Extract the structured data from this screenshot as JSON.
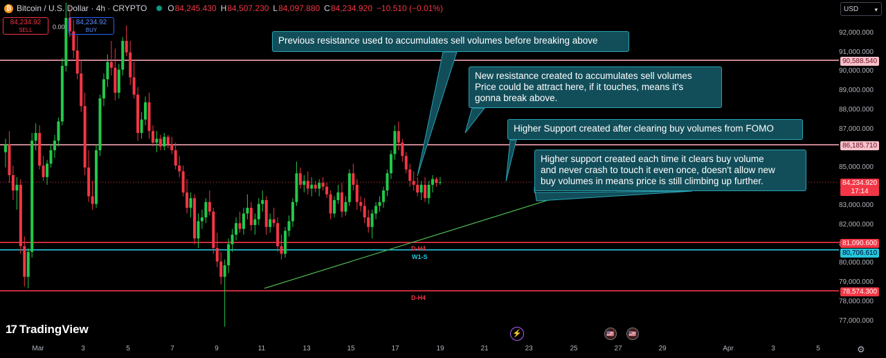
{
  "header": {
    "coin_icon": "bitcoin-icon",
    "symbol": "Bitcoin / U.S. Dollar · 4h · CRYPTO",
    "o_label": "O",
    "o": "84,245.430",
    "h_label": "H",
    "h": "84,507.230",
    "l_label": "L",
    "l": "84,097.880",
    "c_label": "C",
    "c": "84,234.920",
    "change": "−10.510 (−0.01%)"
  },
  "trade": {
    "sell_price": "84,234.92",
    "sell_label": "SELL",
    "spread": "0.00",
    "buy_price": "84,234.92",
    "buy_label": "BUY"
  },
  "currency": "USD",
  "price_labels": {
    "line_90588": "90,588.540",
    "line_86185": "86,185.710",
    "current": "84,234.920",
    "countdown": "17:14",
    "line_81090": "81,090.600",
    "line_80706": "80,706.610",
    "line_78574": "78,574.300"
  },
  "level_tags": {
    "dh4_upper": "D-H4",
    "w1s": "W1-S",
    "dh4_lower": "D-H4"
  },
  "annotations": {
    "note1": "Previous resistance used to accumulates sell volumes before breaking above",
    "note2_l1": "New resistance created to accumulates sell volumes",
    "note2_l2": "Price could be attract here, if it touches, means it's",
    "note2_l3": "gonna break above.",
    "note3": "Higher Support created after clearing buy volumes from FOMO",
    "note4_l1": "Higher support created each time it clears buy volume",
    "note4_l2": "and never crash to touch it even once, doesn't allow new",
    "note4_l3": "buy volumes in means price is still climbing up further."
  },
  "branding": "TradingView",
  "colors": {
    "up": "#22c94a",
    "down": "#f23645",
    "background": "#000000",
    "resistance": "#f5a3b3",
    "support_red": "#f23645",
    "support_cyan": "#26c6da",
    "trendline": "#4caf50"
  },
  "chart_data": {
    "type": "candlestick",
    "title": "Bitcoin / U.S. Dollar · 4h · CRYPTO",
    "y_ticks": [
      92000,
      91000,
      90000,
      89000,
      88000,
      87000,
      85000,
      83000,
      82000,
      81000,
      80000,
      79000,
      78000,
      77000
    ],
    "y_tick_labels": [
      "92,000.000",
      "91,000.000",
      "90,000.000",
      "89,000.000",
      "88,000.000",
      "87,000.000",
      "85,000.000",
      "83,000.000",
      "82,000.000",
      "81,000.000",
      "80,000.000",
      "79,000.000",
      "78,000.000",
      "77,000.000"
    ],
    "x_ticks": [
      "Mar",
      "3",
      "5",
      "7",
      "9",
      "11",
      "13",
      "15",
      "17",
      "19",
      "21",
      "23",
      "25",
      "27",
      "29",
      "Apr",
      "3",
      "5"
    ],
    "ylim": [
      76400,
      93700
    ],
    "horizontal_levels": [
      90588.54,
      86185.71,
      84234.92,
      81090.6,
      80706.61,
      78574.3
    ],
    "trendline": [
      {
        "x": "2025-03-11",
        "y": 78700
      },
      {
        "x": "2025-03-24",
        "y": 83550
      }
    ],
    "candles": [
      [
        85800,
        86500,
        85000,
        86200
      ],
      [
        86200,
        86900,
        84200,
        84600
      ],
      [
        84600,
        85100,
        83300,
        83800
      ],
      [
        83800,
        84500,
        82800,
        84100
      ],
      [
        84100,
        84400,
        80500,
        80900
      ],
      [
        80900,
        81400,
        78800,
        79300
      ],
      [
        79300,
        80800,
        78700,
        80600
      ],
      [
        80600,
        86800,
        80300,
        86400
      ],
      [
        86400,
        87300,
        85900,
        86800
      ],
      [
        86800,
        87200,
        84900,
        85100
      ],
      [
        85100,
        85600,
        84300,
        84500
      ],
      [
        84500,
        85400,
        84100,
        85200
      ],
      [
        85200,
        86200,
        85000,
        85900
      ],
      [
        85900,
        86700,
        85500,
        86400
      ],
      [
        86400,
        87600,
        86100,
        87400
      ],
      [
        87400,
        90700,
        87200,
        90300
      ],
      [
        90300,
        93600,
        90000,
        92800
      ],
      [
        92800,
        93400,
        91800,
        92100
      ],
      [
        92100,
        92700,
        90700,
        91100
      ],
      [
        91100,
        91900,
        89600,
        89900
      ],
      [
        89900,
        90600,
        87900,
        88200
      ],
      [
        88200,
        88900,
        84600,
        85000
      ],
      [
        85000,
        85900,
        83200,
        83500
      ],
      [
        83500,
        84300,
        82800,
        83100
      ],
      [
        83100,
        86200,
        82900,
        85900
      ],
      [
        85900,
        88800,
        85600,
        88600
      ],
      [
        88600,
        89900,
        88200,
        89600
      ],
      [
        89600,
        90900,
        89200,
        90500
      ],
      [
        90500,
        91600,
        89800,
        90200
      ],
      [
        90200,
        91200,
        88500,
        88900
      ],
      [
        88900,
        90400,
        88600,
        90100
      ],
      [
        90100,
        91800,
        89800,
        91600
      ],
      [
        91600,
        92400,
        90800,
        91000
      ],
      [
        91000,
        91600,
        89300,
        89700
      ],
      [
        89700,
        90500,
        88600,
        88800
      ],
      [
        88800,
        89200,
        86400,
        86800
      ],
      [
        86800,
        87900,
        86500,
        87500
      ],
      [
        87500,
        88700,
        87200,
        88400
      ],
      [
        88400,
        88900,
        86500,
        86900
      ],
      [
        86900,
        87200,
        86100,
        86300
      ],
      [
        86300,
        86900,
        85800,
        86500
      ],
      [
        86500,
        86700,
        85900,
        86100
      ],
      [
        86100,
        86800,
        85900,
        86600
      ],
      [
        86600,
        86700,
        86000,
        86200
      ],
      [
        86200,
        86600,
        85700,
        85900
      ],
      [
        85900,
        86300,
        84900,
        85100
      ],
      [
        85100,
        85600,
        84500,
        84800
      ],
      [
        84800,
        85100,
        83500,
        83700
      ],
      [
        83700,
        84400,
        82600,
        82900
      ],
      [
        82900,
        83700,
        82400,
        83400
      ],
      [
        83400,
        83600,
        81000,
        81300
      ],
      [
        81300,
        82600,
        80800,
        82200
      ],
      [
        82200,
        82800,
        81800,
        82400
      ],
      [
        82400,
        83400,
        82100,
        83200
      ],
      [
        83200,
        83800,
        82500,
        82700
      ],
      [
        82700,
        82900,
        80500,
        80800
      ],
      [
        80800,
        81600,
        79800,
        80100
      ],
      [
        80100,
        80600,
        78900,
        79300
      ],
      [
        79300,
        80200,
        76700,
        79900
      ],
      [
        79900,
        81300,
        79500,
        81000
      ],
      [
        81000,
        81800,
        80600,
        81500
      ],
      [
        81500,
        82400,
        81200,
        82100
      ],
      [
        82100,
        82700,
        81600,
        81800
      ],
      [
        81800,
        82900,
        81500,
        82600
      ],
      [
        82600,
        83600,
        82300,
        82900
      ],
      [
        82900,
        83200,
        81700,
        82000
      ],
      [
        82000,
        82600,
        81500,
        82300
      ],
      [
        82300,
        83400,
        82000,
        83100
      ],
      [
        83100,
        83800,
        82700,
        83300
      ],
      [
        83300,
        83500,
        81500,
        81900
      ],
      [
        81900,
        82600,
        81600,
        82300
      ],
      [
        82300,
        82900,
        81900,
        82100
      ],
      [
        82100,
        82400,
        80600,
        80900
      ],
      [
        80900,
        81500,
        80200,
        80500
      ],
      [
        80500,
        81900,
        80300,
        81700
      ],
      [
        81700,
        82500,
        81400,
        82200
      ],
      [
        82200,
        83400,
        81900,
        83200
      ],
      [
        83200,
        85300,
        83000,
        84700
      ],
      [
        84700,
        85000,
        83900,
        84100
      ],
      [
        84100,
        84600,
        83700,
        84300
      ],
      [
        84300,
        84800,
        83600,
        83900
      ],
      [
        83900,
        84500,
        83500,
        84100
      ],
      [
        84100,
        84300,
        83700,
        83900
      ],
      [
        83900,
        84400,
        83500,
        84200
      ],
      [
        84200,
        84500,
        83800,
        84000
      ],
      [
        84000,
        84200,
        83400,
        83600
      ],
      [
        83600,
        83800,
        82300,
        82600
      ],
      [
        82600,
        83500,
        82400,
        83300
      ],
      [
        83300,
        84100,
        83100,
        83700
      ],
      [
        83700,
        84200,
        82400,
        82700
      ],
      [
        82700,
        83500,
        82500,
        83200
      ],
      [
        83200,
        84900,
        83000,
        84700
      ],
      [
        84700,
        85200,
        83800,
        84100
      ],
      [
        84100,
        84400,
        82800,
        83200
      ],
      [
        83200,
        83500,
        82700,
        83000
      ],
      [
        83000,
        83400,
        82100,
        82400
      ],
      [
        82400,
        82800,
        81600,
        81900
      ],
      [
        81900,
        82800,
        81300,
        82600
      ],
      [
        82600,
        83200,
        82300,
        83000
      ],
      [
        83000,
        83500,
        82700,
        83200
      ],
      [
        83200,
        84000,
        82900,
        83800
      ],
      [
        83800,
        84900,
        83500,
        84700
      ],
      [
        84700,
        85900,
        84400,
        85700
      ],
      [
        85700,
        87200,
        85400,
        86900
      ],
      [
        86900,
        87400,
        85900,
        86300
      ],
      [
        86300,
        86500,
        85300,
        85600
      ],
      [
        85600,
        85800,
        84700,
        84900
      ],
      [
        84900,
        85200,
        84000,
        84300
      ],
      [
        84300,
        84800,
        83800,
        84100
      ],
      [
        84100,
        84500,
        83500,
        83700
      ],
      [
        83700,
        84300,
        83300,
        84100
      ],
      [
        84100,
        84500,
        83200,
        83400
      ],
      [
        83400,
        84300,
        83100,
        84100
      ],
      [
        84100,
        84600,
        83700,
        84400
      ],
      [
        84400,
        84500,
        84000,
        84200
      ],
      [
        84200,
        84507,
        84097,
        84234
      ]
    ]
  }
}
